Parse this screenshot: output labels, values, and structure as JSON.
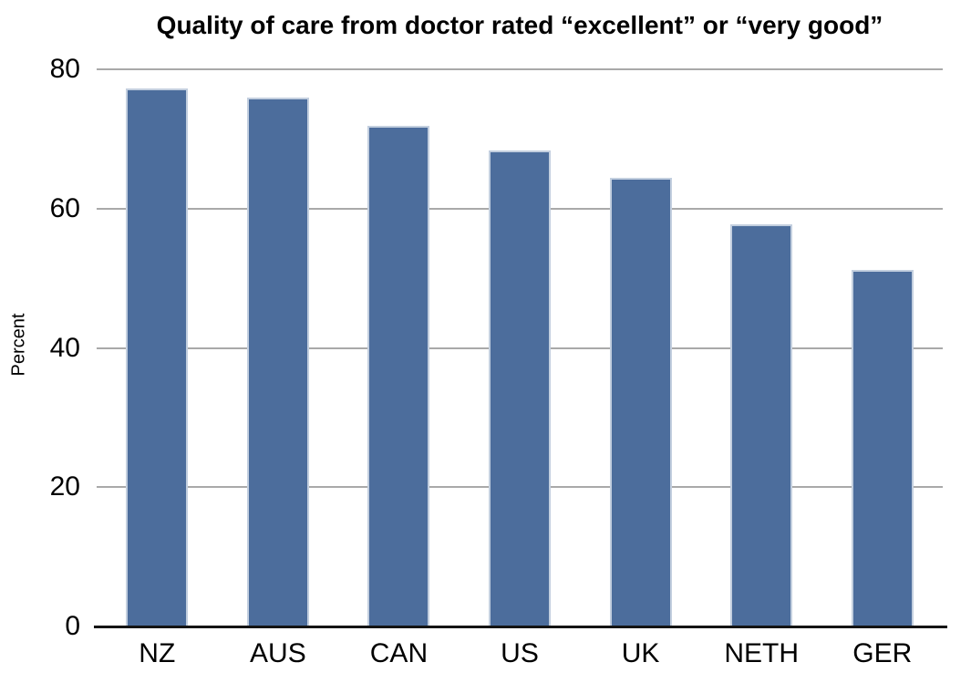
{
  "chart_data": {
    "type": "bar",
    "title": "Quality of care from doctor rated “excellent” or “very good”",
    "xlabel": "",
    "ylabel": "Percent",
    "categories": [
      "NZ",
      "AUS",
      "CAN",
      "US",
      "UK",
      "NETH",
      "GER"
    ],
    "values": [
      77.3,
      76.0,
      71.9,
      68.4,
      64.4,
      57.7,
      51.2
    ],
    "ylim": [
      0,
      80
    ],
    "yticks": [
      0,
      20,
      40,
      60,
      80
    ],
    "grid": "horizontal-only",
    "legend": "none",
    "bar_color": "#4c6d9c",
    "bar_edge_color": "#c3cfdf",
    "gridline_color": "#a9a9a9",
    "axis_line_color": "#141414",
    "text_color": "#000000"
  }
}
